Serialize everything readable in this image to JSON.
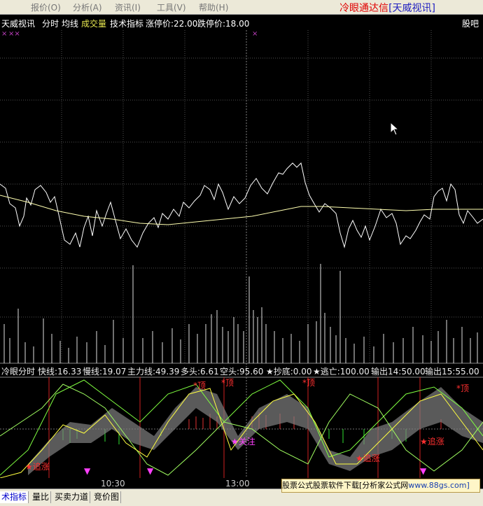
{
  "menu": [
    "报价(O)",
    "分析(A)",
    "资讯(I)",
    "工具(V)",
    "帮助(H)"
  ],
  "brand": {
    "name": "冷眼通达信",
    "tag": "[天威视讯]"
  },
  "infobar": {
    "stock": "天威视讯",
    "btn_fenshi": "分时",
    "btn_junxian": "均线",
    "btn_volume": "成交量",
    "btn_tech": "技术指标",
    "limit_up": "涨停价:22.00",
    "limit_down": "跌停价:18.00",
    "right_text": "股吧"
  },
  "indicator": {
    "name": "冷眼分时",
    "fast": "快线:16.33",
    "slow": "慢线:19.07",
    "main": "主力线:49.39",
    "bull": "多头:6.61",
    "bear": "空头:95.60",
    "bottom": "★抄底:0.00",
    "escape": "★逃亡:100.00",
    "out1": "输出14:50.00",
    "out2": "输出15:55.00"
  },
  "signals": {
    "chase": "★追涨",
    "follow": "★关注",
    "top": "*顶"
  },
  "time_axis": [
    "10:30",
    "13:00"
  ],
  "tabs": [
    "术指标",
    "量比",
    "买卖力道",
    "竞价图"
  ],
  "ad": {
    "text": "股票公式股票软件下载[分析家公式网",
    "url": "www.88gs.com]"
  },
  "colors": {
    "price": "#FFFFFF",
    "avg": "#FFFF99",
    "fast": "#FFFF40",
    "slow": "#80FF40",
    "main": "#FFFFFF",
    "red": "#FF3030",
    "green": "#30FF30",
    "magenta": "#FF40FF"
  }
}
